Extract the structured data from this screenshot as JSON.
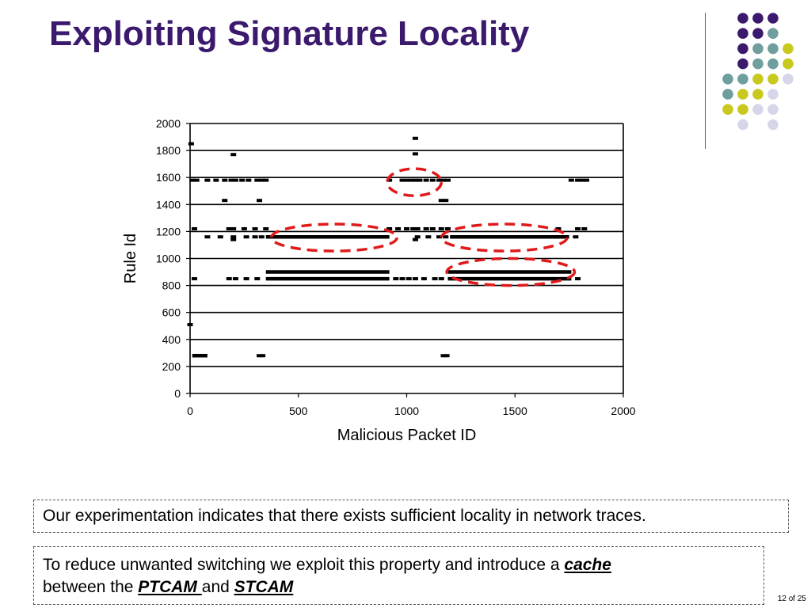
{
  "slide": {
    "title": "Exploiting Signature Locality",
    "box1_text": "Our experimentation indicates that there exists sufficient locality in network traces.",
    "box2_pre": "To reduce unwanted switching we exploit this property and introduce a ",
    "box2_cache": "cache",
    "box2_mid": "between the ",
    "box2_ptcam": "PTCAM ",
    "box2_and": "and ",
    "box2_stcam": "STCAM",
    "page": "12 of 25",
    "colors": {
      "title": "#3b1a6e",
      "purple": "#3b1a6e",
      "teal": "#6e9e9e",
      "yellow": "#c8c81e",
      "lavender": "#d6d6ea",
      "highlight": "#e01a1a"
    }
  },
  "chart_data": {
    "type": "scatter",
    "title": "",
    "xlabel": "Malicious Packet ID",
    "ylabel": "Rule Id",
    "xlim": [
      0,
      2000
    ],
    "ylim": [
      0,
      2000
    ],
    "xticks": [
      0,
      500,
      1000,
      1500,
      2000
    ],
    "yticks": [
      0,
      200,
      400,
      600,
      800,
      1000,
      1200,
      1400,
      1600,
      1800,
      2000
    ],
    "grid": "horizontal",
    "series": [
      {
        "color": "#000000",
        "points": [
          [
            5,
            1850
          ],
          [
            200,
            1770
          ],
          [
            1040,
            1890
          ],
          [
            1040,
            1775
          ],
          [
            0,
            510
          ],
          [
            10,
            1580
          ],
          [
            30,
            1580
          ],
          [
            80,
            1580
          ],
          [
            120,
            1580
          ],
          [
            160,
            1580
          ],
          [
            190,
            1580
          ],
          [
            210,
            1580
          ],
          [
            240,
            1580
          ],
          [
            270,
            1580
          ],
          [
            310,
            1580
          ],
          [
            330,
            1580
          ],
          [
            350,
            1580
          ],
          [
            920,
            1580
          ],
          [
            980,
            1580
          ],
          [
            1000,
            1580
          ],
          [
            1020,
            1580
          ],
          [
            1040,
            1580
          ],
          [
            1060,
            1580
          ],
          [
            1090,
            1580
          ],
          [
            1120,
            1580
          ],
          [
            1150,
            1580
          ],
          [
            1170,
            1580
          ],
          [
            1190,
            1580
          ],
          [
            1760,
            1580
          ],
          [
            1790,
            1580
          ],
          [
            1810,
            1580
          ],
          [
            1830,
            1580
          ],
          [
            160,
            1430
          ],
          [
            320,
            1430
          ],
          [
            1160,
            1430
          ],
          [
            1180,
            1430
          ],
          [
            20,
            1220
          ],
          [
            180,
            1220
          ],
          [
            200,
            1220
          ],
          [
            250,
            1220
          ],
          [
            300,
            1220
          ],
          [
            350,
            1220
          ],
          [
            920,
            1220
          ],
          [
            960,
            1220
          ],
          [
            1000,
            1220
          ],
          [
            1030,
            1220
          ],
          [
            1050,
            1220
          ],
          [
            1090,
            1220
          ],
          [
            1120,
            1220
          ],
          [
            1160,
            1220
          ],
          [
            1190,
            1220
          ],
          [
            1700,
            1220
          ],
          [
            1790,
            1220
          ],
          [
            1820,
            1220
          ],
          [
            80,
            1160
          ],
          [
            140,
            1160
          ],
          [
            200,
            1160
          ],
          [
            260,
            1160
          ],
          [
            300,
            1160
          ],
          [
            330,
            1160
          ],
          [
            1050,
            1160
          ],
          [
            1100,
            1160
          ],
          [
            1150,
            1160
          ],
          [
            1180,
            1160
          ],
          [
            1780,
            1160
          ],
          [
            200,
            1140
          ],
          [
            1040,
            1140
          ],
          [
            20,
            850
          ],
          [
            180,
            850
          ],
          [
            210,
            850
          ],
          [
            260,
            850
          ],
          [
            310,
            850
          ],
          [
            950,
            850
          ],
          [
            980,
            850
          ],
          [
            1010,
            850
          ],
          [
            1040,
            850
          ],
          [
            1080,
            850
          ],
          [
            1130,
            850
          ],
          [
            1160,
            850
          ],
          [
            1790,
            850
          ],
          [
            40,
            280
          ],
          [
            60,
            280
          ],
          [
            320,
            280
          ],
          [
            335,
            280
          ],
          [
            1170,
            280
          ],
          [
            1185,
            280
          ]
        ],
        "segments": [
          {
            "x0": 350,
            "x1": 920,
            "y": 1160
          },
          {
            "x0": 1200,
            "x1": 1750,
            "y": 1160
          },
          {
            "x0": 350,
            "x1": 920,
            "y": 900
          },
          {
            "x0": 350,
            "x1": 920,
            "y": 850
          },
          {
            "x0": 1190,
            "x1": 1760,
            "y": 900
          },
          {
            "x0": 1190,
            "x1": 1760,
            "y": 850
          },
          {
            "x0": 10,
            "x1": 80,
            "y": 280
          }
        ]
      }
    ],
    "highlights": [
      {
        "cx": 1035,
        "cy": 1565,
        "rx": 125,
        "ry": 100
      },
      {
        "cx": 665,
        "cy": 1155,
        "rx": 290,
        "ry": 100
      },
      {
        "cx": 1450,
        "cy": 1155,
        "rx": 290,
        "ry": 100
      },
      {
        "cx": 1480,
        "cy": 900,
        "rx": 295,
        "ry": 100
      }
    ]
  }
}
